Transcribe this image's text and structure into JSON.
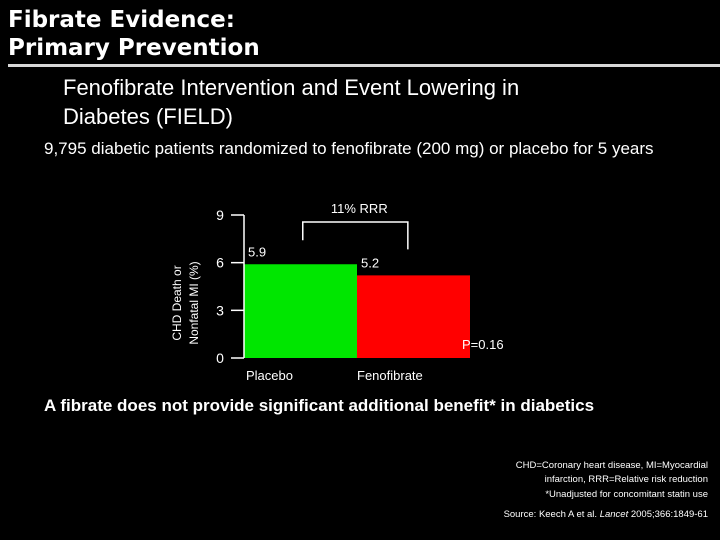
{
  "slide": {
    "title_line1": "Fibrate Evidence:",
    "title_line2": "Primary Prevention",
    "subtitle_line1": "Fenofibrate Intervention and Event Lowering in",
    "subtitle_line2": "Diabetes (FIELD)",
    "intro": "9,795 diabetic patients randomized to fenofibrate (200 mg) or placebo for 5 years",
    "conclusion": "A fibrate does not provide significant additional benefit* in diabetics",
    "footnote_abbrev_line1": "CHD=Coronary heart disease, MI=Myocardial",
    "footnote_abbrev_line2": "infarction, RRR=Relative risk reduction",
    "footnote_unadjusted": "*Unadjusted for concomitant statin use",
    "source_prefix": "Source: Keech A et al.",
    "source_journal": "Lancet",
    "source_suffix": "2005;366:1849-61"
  },
  "chart_data": {
    "type": "bar",
    "categories": [
      "Placebo",
      "Fenofibrate"
    ],
    "values": [
      5.9,
      5.2
    ],
    "value_labels": [
      "5.9",
      "5.2"
    ],
    "colors": [
      "#00e600",
      "#ff0000"
    ],
    "ylabel_line1": "CHD Death or",
    "ylabel_line2": "Nonfatal MI (%)",
    "ylim": [
      0,
      9
    ],
    "yticks": [
      0,
      3,
      6,
      9
    ],
    "ytick_labels": [
      "0",
      "3",
      "6",
      "9"
    ],
    "bracket_label": "11% RRR",
    "p_value": "P=0.16"
  }
}
